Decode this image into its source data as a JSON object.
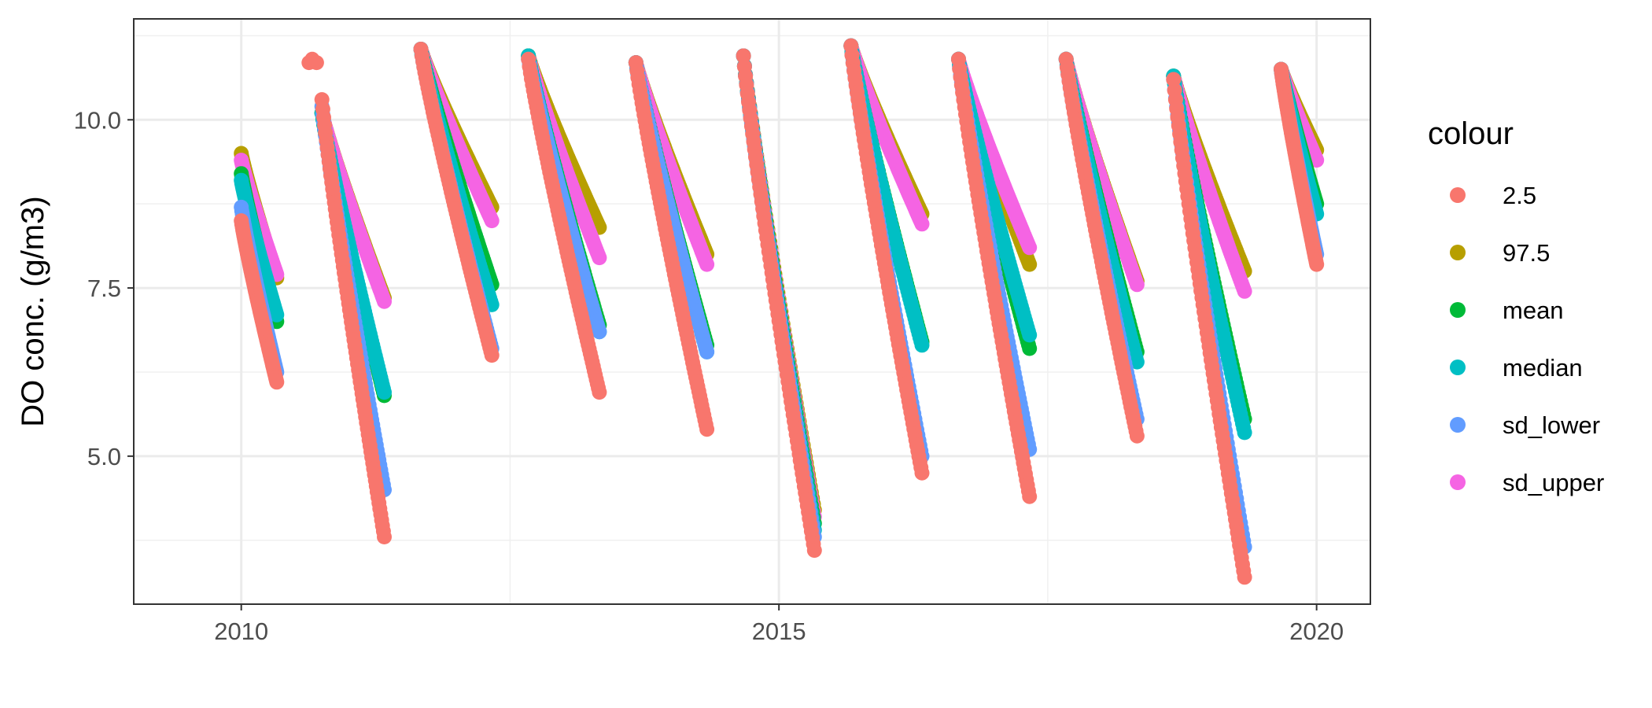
{
  "chart_data": {
    "type": "scatter",
    "title": "",
    "xlabel": "",
    "ylabel": "DO conc. (g/m3)",
    "xlim": [
      2009.0,
      2020.5
    ],
    "ylim": [
      2.8,
      11.5
    ],
    "x_ticks": [
      2010,
      2015,
      2020
    ],
    "x_tick_labels": [
      "2010",
      "2015",
      "2020"
    ],
    "y_ticks": [
      5.0,
      7.5,
      10.0
    ],
    "y_tick_labels": [
      "5.0",
      "7.5",
      "10.0"
    ],
    "grid": true,
    "legend": {
      "title": "colour",
      "placement": "right"
    },
    "series": [
      {
        "name": "2.5",
        "color": "#F8766D"
      },
      {
        "name": "97.5",
        "color": "#B79F00"
      },
      {
        "name": "mean",
        "color": "#00BA38"
      },
      {
        "name": "median",
        "color": "#00BFC4"
      },
      {
        "name": "sd_lower",
        "color": "#619CFF"
      },
      {
        "name": "sd_upper",
        "color": "#F564E3"
      }
    ],
    "seasons": [
      {
        "start": 2010.0,
        "end": 2010.33,
        "values": {
          "2.5": [
            8.5,
            6.1
          ],
          "sd_lower": [
            8.7,
            6.25
          ],
          "median": [
            9.1,
            7.1
          ],
          "mean": [
            9.2,
            7.0
          ],
          "sd_upper": [
            9.4,
            7.7
          ],
          "97.5": [
            9.5,
            7.65
          ]
        }
      },
      {
        "start": 2010.75,
        "end": 2011.33,
        "values": {
          "2.5": [
            10.3,
            3.8
          ],
          "sd_lower": [
            10.2,
            4.5
          ],
          "median": [
            10.1,
            5.95
          ],
          "mean": [
            10.1,
            5.9
          ],
          "sd_upper": [
            10.1,
            7.3
          ],
          "97.5": [
            10.1,
            7.35
          ]
        }
      },
      {
        "start": 2011.67,
        "end": 2012.33,
        "values": {
          "2.5": [
            11.05,
            6.5
          ],
          "sd_lower": [
            11.05,
            6.6
          ],
          "median": [
            11.05,
            7.25
          ],
          "mean": [
            11.05,
            7.55
          ],
          "sd_upper": [
            11.05,
            8.5
          ],
          "97.5": [
            11.05,
            8.7
          ]
        }
      },
      {
        "start": 2012.67,
        "end": 2013.33,
        "values": {
          "2.5": [
            10.9,
            5.95
          ],
          "sd_lower": [
            10.9,
            6.85
          ],
          "median": [
            10.95,
            6.85
          ],
          "mean": [
            10.95,
            6.95
          ],
          "sd_upper": [
            10.95,
            7.95
          ],
          "97.5": [
            10.95,
            8.4
          ]
        }
      },
      {
        "start": 2013.67,
        "end": 2014.33,
        "values": {
          "2.5": [
            10.85,
            5.4
          ],
          "sd_lower": [
            10.85,
            6.55
          ],
          "median": [
            10.85,
            6.55
          ],
          "mean": [
            10.85,
            6.65
          ],
          "sd_upper": [
            10.85,
            7.85
          ],
          "97.5": [
            10.85,
            8.0
          ]
        }
      },
      {
        "start": 2014.67,
        "end": 2015.33,
        "values": {
          "2.5": [
            10.95,
            3.6
          ],
          "sd_lower": [
            10.95,
            3.8
          ],
          "median": [
            10.95,
            3.9
          ],
          "mean": [
            10.95,
            4.0
          ],
          "sd_upper": [
            10.95,
            4.1
          ],
          "97.5": [
            10.95,
            4.2
          ]
        }
      },
      {
        "start": 2015.67,
        "end": 2016.33,
        "values": {
          "2.5": [
            11.1,
            4.75
          ],
          "sd_lower": [
            11.1,
            5.0
          ],
          "median": [
            11.1,
            6.65
          ],
          "mean": [
            11.1,
            6.7
          ],
          "sd_upper": [
            11.1,
            8.45
          ],
          "97.5": [
            11.1,
            8.6
          ]
        }
      },
      {
        "start": 2016.67,
        "end": 2017.33,
        "values": {
          "2.5": [
            10.9,
            4.4
          ],
          "sd_lower": [
            10.9,
            5.1
          ],
          "median": [
            10.9,
            6.8
          ],
          "mean": [
            10.9,
            6.6
          ],
          "sd_upper": [
            10.9,
            8.1
          ],
          "97.5": [
            10.9,
            7.85
          ]
        }
      },
      {
        "start": 2017.67,
        "end": 2018.33,
        "values": {
          "2.5": [
            10.9,
            5.3
          ],
          "sd_lower": [
            10.9,
            5.55
          ],
          "median": [
            10.9,
            6.4
          ],
          "mean": [
            10.9,
            6.55
          ],
          "sd_upper": [
            10.9,
            7.55
          ],
          "97.5": [
            10.9,
            7.6
          ]
        }
      },
      {
        "start": 2018.67,
        "end": 2019.33,
        "values": {
          "2.5": [
            10.6,
            3.2
          ],
          "sd_lower": [
            10.6,
            3.65
          ],
          "median": [
            10.65,
            5.35
          ],
          "mean": [
            10.65,
            5.55
          ],
          "sd_upper": [
            10.65,
            7.45
          ],
          "97.5": [
            10.65,
            7.75
          ]
        }
      },
      {
        "start": 2019.67,
        "end": 2020.0,
        "values": {
          "2.5": [
            10.75,
            7.85
          ],
          "sd_lower": [
            10.75,
            8.0
          ],
          "median": [
            10.75,
            8.6
          ],
          "mean": [
            10.75,
            8.75
          ],
          "sd_upper": [
            10.75,
            9.4
          ],
          "97.5": [
            10.75,
            9.55
          ]
        }
      }
    ],
    "outliers": [
      {
        "series": "2.5",
        "x": 2010.63,
        "y": 10.85
      },
      {
        "series": "2.5",
        "x": 2010.7,
        "y": 10.85
      },
      {
        "series": "2.5",
        "x": 2010.66,
        "y": 10.9
      }
    ]
  }
}
